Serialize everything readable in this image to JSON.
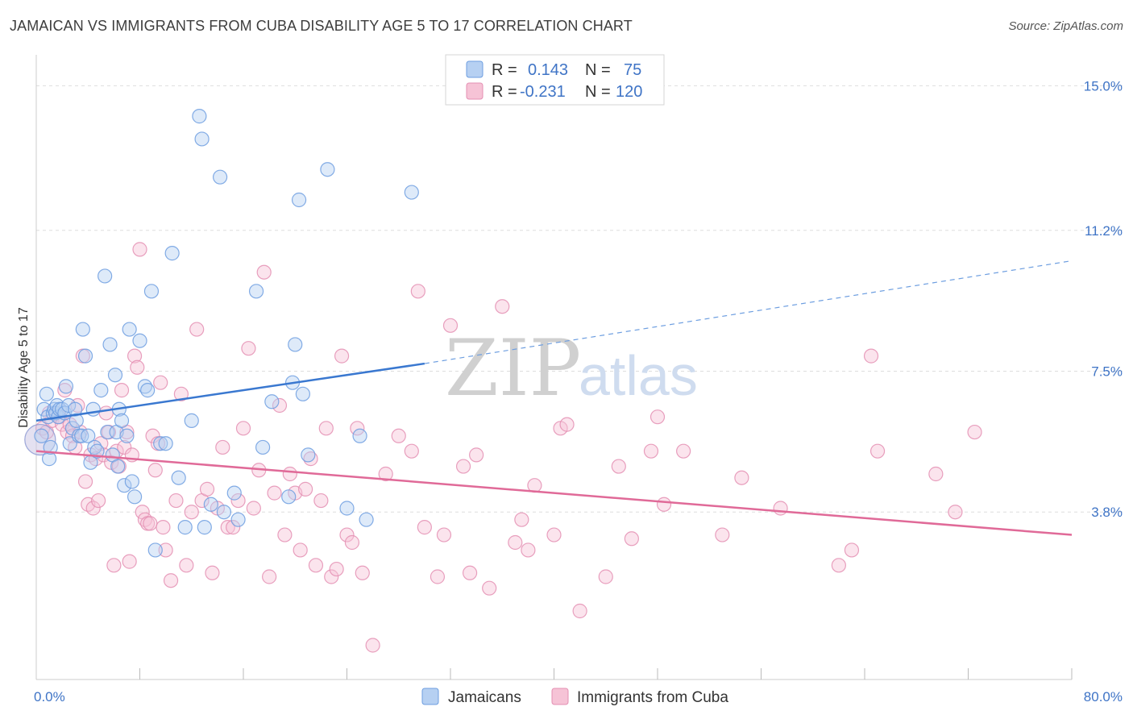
{
  "title": "JAMAICAN VS IMMIGRANTS FROM CUBA DISABILITY AGE 5 TO 17 CORRELATION CHART",
  "source": "Source: ZipAtlas.com",
  "watermark": {
    "zip": "ZIP",
    "atlas": "atlas"
  },
  "colors": {
    "blue": "#3a78d0",
    "blue_fill": "#b6d0f2",
    "blue_edge": "#6d9ee0",
    "pink": "#e06a98",
    "pink_fill": "#f6c3d6",
    "pink_edge": "#e48fb3",
    "grid": "#dddddd",
    "tick_label": "#3f74c6"
  },
  "legend": {
    "series1": {
      "r_label": "R =",
      "r_value": "0.143",
      "n_label": "N =",
      "n_value": "75"
    },
    "series2": {
      "r_label": "R =",
      "r_value": "-0.231",
      "n_label": "N =",
      "n_value": "120"
    }
  },
  "bottom_legend": {
    "series1": "Jamaicans",
    "series2": "Immigrants from Cuba"
  },
  "chart_data": {
    "type": "scatter",
    "xlabel": "",
    "ylabel": "Disability Age 5 to 17",
    "xlim": [
      0,
      80
    ],
    "ylim": [
      -0.6,
      15.6
    ],
    "y_ticks": [
      {
        "value": 3.8,
        "label": "3.8%"
      },
      {
        "value": 7.5,
        "label": "7.5%"
      },
      {
        "value": 11.2,
        "label": "11.2%"
      },
      {
        "value": 15.0,
        "label": "15.0%"
      }
    ],
    "x_ticks": [
      {
        "value": 0,
        "label": "0.0%"
      },
      {
        "value": 80,
        "label": "80.0%"
      }
    ],
    "x_minor_ticks": [
      8,
      16,
      24,
      32,
      40,
      48,
      56,
      64,
      72,
      80
    ],
    "series": [
      {
        "name": "Jamaicans",
        "color": "#3a78d0",
        "trend": {
          "x0": 0,
          "y0": 6.2,
          "x1": 30,
          "y1": 7.7,
          "dash_to_x": 80,
          "dash_to_y": 10.4
        },
        "points": [
          [
            0.4,
            5.8
          ],
          [
            0.6,
            6.5
          ],
          [
            0.8,
            6.9
          ],
          [
            0.9,
            6.3
          ],
          [
            1.0,
            5.2
          ],
          [
            1.1,
            5.5
          ],
          [
            1.3,
            6.4
          ],
          [
            1.4,
            6.5
          ],
          [
            1.5,
            6.4
          ],
          [
            1.6,
            6.6
          ],
          [
            1.7,
            6.3
          ],
          [
            1.8,
            6.5
          ],
          [
            2.0,
            6.5
          ],
          [
            2.2,
            6.4
          ],
          [
            2.3,
            7.1
          ],
          [
            2.5,
            6.6
          ],
          [
            2.6,
            5.6
          ],
          [
            2.8,
            6.0
          ],
          [
            3.0,
            6.5
          ],
          [
            3.1,
            6.2
          ],
          [
            3.3,
            5.8
          ],
          [
            3.5,
            5.8
          ],
          [
            3.6,
            8.6
          ],
          [
            3.8,
            7.9
          ],
          [
            4.0,
            5.8
          ],
          [
            4.2,
            5.1
          ],
          [
            4.4,
            6.5
          ],
          [
            4.5,
            5.5
          ],
          [
            4.7,
            5.4
          ],
          [
            5.0,
            7.0
          ],
          [
            5.3,
            10.0
          ],
          [
            5.5,
            5.9
          ],
          [
            5.7,
            8.2
          ],
          [
            5.9,
            5.3
          ],
          [
            6.1,
            7.4
          ],
          [
            6.2,
            5.9
          ],
          [
            6.3,
            5.0
          ],
          [
            6.4,
            6.5
          ],
          [
            6.6,
            6.2
          ],
          [
            6.8,
            4.5
          ],
          [
            7.0,
            5.8
          ],
          [
            7.2,
            8.6
          ],
          [
            7.4,
            4.6
          ],
          [
            7.6,
            4.2
          ],
          [
            8.0,
            8.3
          ],
          [
            8.4,
            7.1
          ],
          [
            8.6,
            7.0
          ],
          [
            8.9,
            9.6
          ],
          [
            9.2,
            2.8
          ],
          [
            9.6,
            5.6
          ],
          [
            10.0,
            5.6
          ],
          [
            10.5,
            10.6
          ],
          [
            11.0,
            4.7
          ],
          [
            11.5,
            3.4
          ],
          [
            12.0,
            6.2
          ],
          [
            12.6,
            14.2
          ],
          [
            12.8,
            13.6
          ],
          [
            13.0,
            3.4
          ],
          [
            13.5,
            4.0
          ],
          [
            14.2,
            12.6
          ],
          [
            14.5,
            3.8
          ],
          [
            15.3,
            4.3
          ],
          [
            15.6,
            3.6
          ],
          [
            17.0,
            9.6
          ],
          [
            17.5,
            5.5
          ],
          [
            18.2,
            6.7
          ],
          [
            19.5,
            4.2
          ],
          [
            19.8,
            7.2
          ],
          [
            20.0,
            8.2
          ],
          [
            20.3,
            12.0
          ],
          [
            20.6,
            6.9
          ],
          [
            21.0,
            5.3
          ],
          [
            22.5,
            12.8
          ],
          [
            24.0,
            3.9
          ],
          [
            25.0,
            5.8
          ],
          [
            25.5,
            3.6
          ],
          [
            29.0,
            12.2
          ]
        ],
        "big_point": [
          0.3,
          5.7
        ]
      },
      {
        "name": "Immigrants from Cuba",
        "color": "#e06a98",
        "trend": {
          "x0": 0,
          "y0": 5.4,
          "x1": 80,
          "y1": 3.2
        },
        "points": [
          [
            0.5,
            6.0
          ],
          [
            0.8,
            5.9
          ],
          [
            1.0,
            6.4
          ],
          [
            1.2,
            6.2
          ],
          [
            1.5,
            6.4
          ],
          [
            1.8,
            6.3
          ],
          [
            2.0,
            6.1
          ],
          [
            2.2,
            7.0
          ],
          [
            2.4,
            5.9
          ],
          [
            2.6,
            6.1
          ],
          [
            2.8,
            5.8
          ],
          [
            3.0,
            5.5
          ],
          [
            3.2,
            6.6
          ],
          [
            3.4,
            5.9
          ],
          [
            3.6,
            7.9
          ],
          [
            3.8,
            4.6
          ],
          [
            4.0,
            4.0
          ],
          [
            4.2,
            5.3
          ],
          [
            4.4,
            3.9
          ],
          [
            4.6,
            5.2
          ],
          [
            4.8,
            4.1
          ],
          [
            5.0,
            5.6
          ],
          [
            5.2,
            5.3
          ],
          [
            5.4,
            6.4
          ],
          [
            5.6,
            5.9
          ],
          [
            5.8,
            5.1
          ],
          [
            6.0,
            2.4
          ],
          [
            6.2,
            5.4
          ],
          [
            6.4,
            5.0
          ],
          [
            6.6,
            7.0
          ],
          [
            6.8,
            5.5
          ],
          [
            7.0,
            5.9
          ],
          [
            7.2,
            2.5
          ],
          [
            7.4,
            5.3
          ],
          [
            7.6,
            7.9
          ],
          [
            7.8,
            7.6
          ],
          [
            8.0,
            10.7
          ],
          [
            8.2,
            3.8
          ],
          [
            8.4,
            3.6
          ],
          [
            8.6,
            3.5
          ],
          [
            8.8,
            3.5
          ],
          [
            9.0,
            5.8
          ],
          [
            9.2,
            4.9
          ],
          [
            9.4,
            5.6
          ],
          [
            9.6,
            7.2
          ],
          [
            9.8,
            3.4
          ],
          [
            10.0,
            2.8
          ],
          [
            10.4,
            2.0
          ],
          [
            10.8,
            4.1
          ],
          [
            11.2,
            6.9
          ],
          [
            11.6,
            2.4
          ],
          [
            12.0,
            3.8
          ],
          [
            12.4,
            8.6
          ],
          [
            12.8,
            4.1
          ],
          [
            13.2,
            4.4
          ],
          [
            13.6,
            2.2
          ],
          [
            14.0,
            3.9
          ],
          [
            14.4,
            5.5
          ],
          [
            14.8,
            3.4
          ],
          [
            15.2,
            3.4
          ],
          [
            15.6,
            4.1
          ],
          [
            16.0,
            6.0
          ],
          [
            16.4,
            8.1
          ],
          [
            16.8,
            3.9
          ],
          [
            17.2,
            4.9
          ],
          [
            17.6,
            10.1
          ],
          [
            18.0,
            2.1
          ],
          [
            18.4,
            4.3
          ],
          [
            18.8,
            6.6
          ],
          [
            19.2,
            3.2
          ],
          [
            19.6,
            4.8
          ],
          [
            20.0,
            4.3
          ],
          [
            20.4,
            2.8
          ],
          [
            20.8,
            4.4
          ],
          [
            21.2,
            5.2
          ],
          [
            21.6,
            2.4
          ],
          [
            22.0,
            4.1
          ],
          [
            22.4,
            6.0
          ],
          [
            22.8,
            2.1
          ],
          [
            23.2,
            2.3
          ],
          [
            23.6,
            7.9
          ],
          [
            24.0,
            3.2
          ],
          [
            24.4,
            3.0
          ],
          [
            24.8,
            6.0
          ],
          [
            25.2,
            2.2
          ],
          [
            26.0,
            0.3
          ],
          [
            27.0,
            4.8
          ],
          [
            28.0,
            5.8
          ],
          [
            29.0,
            5.4
          ],
          [
            29.5,
            9.6
          ],
          [
            30.0,
            3.4
          ],
          [
            31.0,
            2.1
          ],
          [
            31.5,
            3.2
          ],
          [
            32.0,
            8.7
          ],
          [
            33.0,
            5.0
          ],
          [
            33.5,
            2.2
          ],
          [
            34.0,
            5.3
          ],
          [
            35.0,
            1.8
          ],
          [
            36.0,
            9.2
          ],
          [
            37.0,
            3.0
          ],
          [
            37.5,
            3.6
          ],
          [
            38.0,
            2.8
          ],
          [
            38.5,
            4.5
          ],
          [
            40.0,
            3.2
          ],
          [
            40.5,
            6.0
          ],
          [
            41.0,
            6.1
          ],
          [
            42.0,
            1.2
          ],
          [
            44.0,
            2.1
          ],
          [
            45.0,
            5.0
          ],
          [
            46.0,
            3.1
          ],
          [
            47.5,
            5.4
          ],
          [
            48.0,
            6.3
          ],
          [
            48.5,
            4.0
          ],
          [
            50.0,
            5.4
          ],
          [
            53.0,
            3.2
          ],
          [
            54.5,
            4.7
          ],
          [
            57.5,
            3.9
          ],
          [
            62.0,
            2.4
          ],
          [
            63.0,
            2.8
          ],
          [
            64.5,
            7.9
          ],
          [
            65.0,
            5.4
          ],
          [
            69.5,
            4.8
          ],
          [
            71.0,
            3.8
          ],
          [
            72.5,
            5.9
          ]
        ],
        "big_point": [
          0.3,
          5.7
        ]
      }
    ]
  }
}
